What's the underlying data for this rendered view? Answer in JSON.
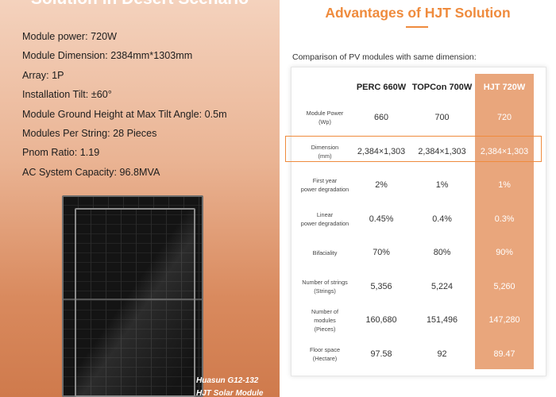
{
  "left": {
    "heading": "Solution in Desert Scenario",
    "specs": [
      "Module power: 720W",
      "Module Dimension: 2384mm*1303mm",
      "Array: 1P",
      "Installation Tilt: ±60°",
      "Module Ground Height at Max Tilt Angle: 0.5m",
      "Modules Per String: 28 Pieces",
      "Pnom Ratio: 1.19",
      "AC System Capacity: 96.8MVA"
    ],
    "caption_line1": "Huasun G12-132",
    "caption_line2": "HJT Solar Module"
  },
  "right": {
    "title": "Advantages of HJT Solution",
    "subtitle": "Comparison of PV modules with same dimension:",
    "accent_color": "#ef8b3d",
    "hjt_column_color": "#e9a67c",
    "table": {
      "headers": [
        "",
        "PERC 660W",
        "TOPCon 700W",
        "HJT 720W"
      ],
      "rows": [
        {
          "label": "Module Power\n(Wp)",
          "perc": "660",
          "topcon": "700",
          "hjt": "720"
        },
        {
          "label": "Dimension\n(mm)",
          "perc": "2,384×1,303",
          "topcon": "2,384×1,303",
          "hjt": "2,384×1,303"
        },
        {
          "label": "First year\npower degradation",
          "perc": "2%",
          "topcon": "1%",
          "hjt": "1%"
        },
        {
          "label": "Linear\npower degradation",
          "perc": "0.45%",
          "topcon": "0.4%",
          "hjt": "0.3%"
        },
        {
          "label": "Bifaciality",
          "perc": "70%",
          "topcon": "80%",
          "hjt": "90%"
        },
        {
          "label": "Number of strings\n(Strings)",
          "perc": "5,356",
          "topcon": "5,224",
          "hjt": "5,260"
        },
        {
          "label": "Number of\nmodules\n(Pieces)",
          "perc": "160,680",
          "topcon": "151,496",
          "hjt": "147,280"
        },
        {
          "label": "Floor space\n(Hectare)",
          "perc": "97.58",
          "topcon": "92",
          "hjt": "89.47"
        }
      ]
    }
  }
}
